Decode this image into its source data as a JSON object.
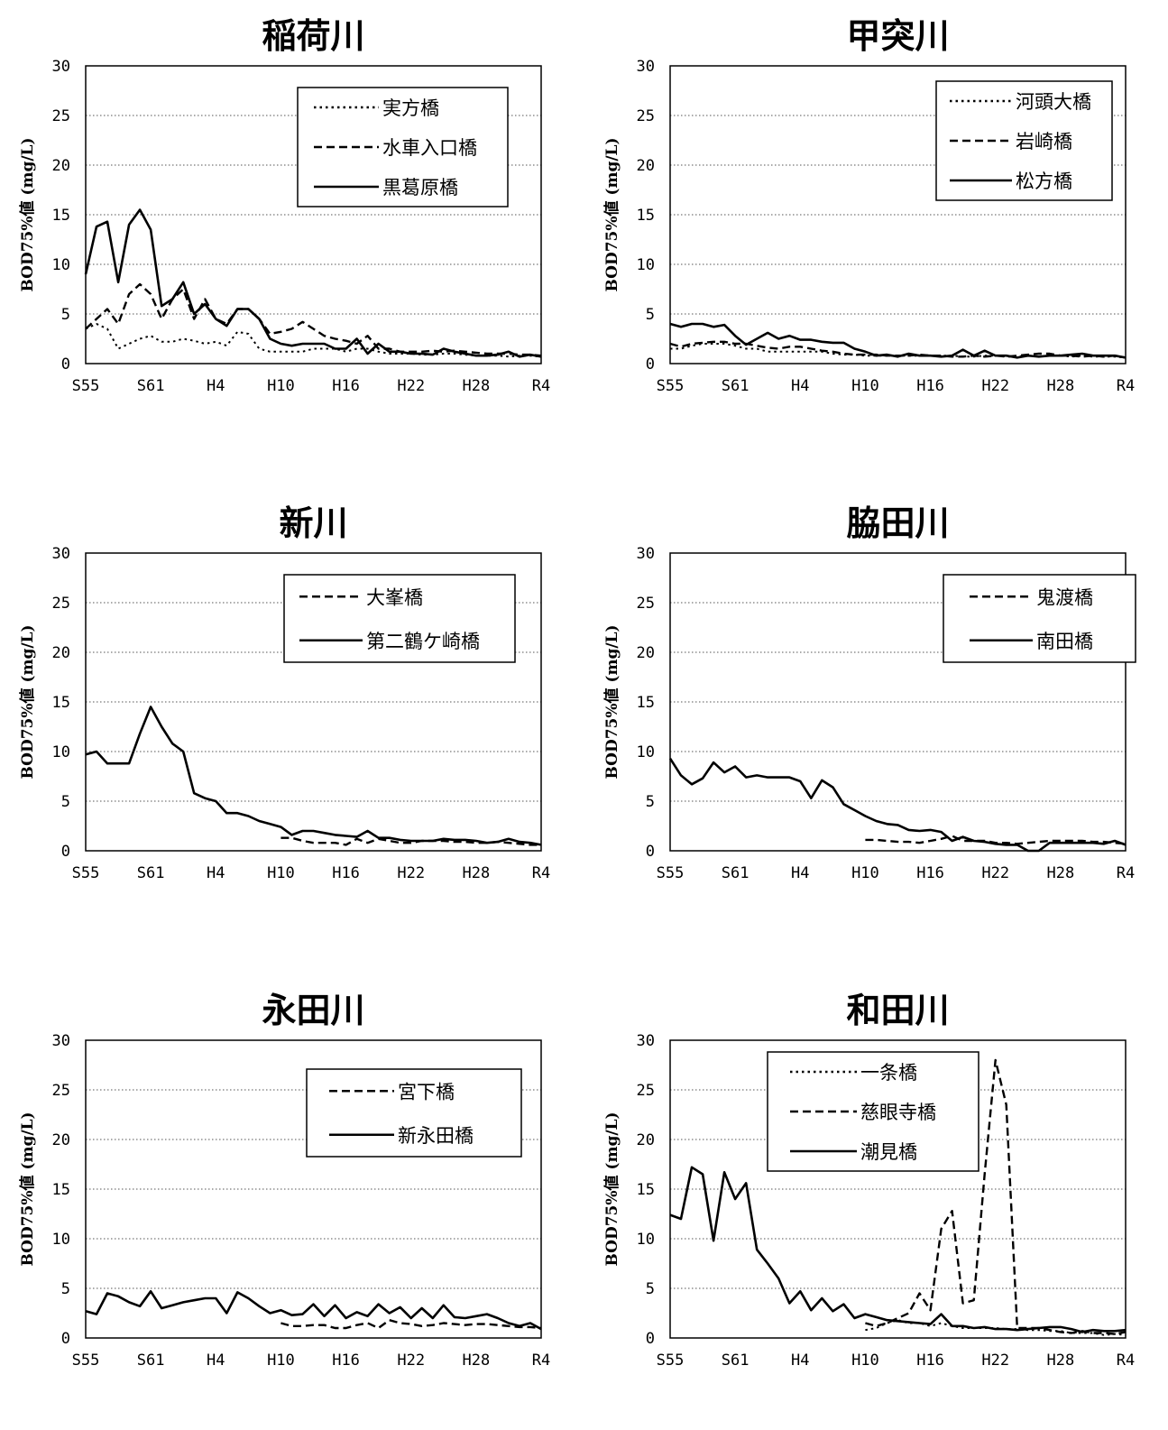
{
  "x_years": [
    1980,
    1981,
    1982,
    1983,
    1984,
    1985,
    1986,
    1987,
    1988,
    1989,
    1990,
    1991,
    1992,
    1993,
    1994,
    1995,
    1996,
    1997,
    1998,
    1999,
    2000,
    2001,
    2002,
    2003,
    2004,
    2005,
    2006,
    2007,
    2008,
    2009,
    2010,
    2011,
    2012,
    2013,
    2014,
    2015,
    2016,
    2017,
    2018,
    2019,
    2020,
    2021,
    2022
  ],
  "chart_data": [
    {
      "type": "line",
      "title": "稲荷川",
      "ylabel": "BOD75%値 (mg/L)",
      "ylim": [
        0,
        30
      ],
      "yticks": [
        "0",
        "5",
        "10",
        "15",
        "20",
        "25",
        "30"
      ],
      "xticks": [
        {
          "x": 1980,
          "label": "S55"
        },
        {
          "x": 1986,
          "label": "S61"
        },
        {
          "x": 1992,
          "label": "H4"
        },
        {
          "x": 1998,
          "label": "H10"
        },
        {
          "x": 2004,
          "label": "H16"
        },
        {
          "x": 2010,
          "label": "H22"
        },
        {
          "x": 2016,
          "label": "H28"
        },
        {
          "x": 2022,
          "label": "R4"
        }
      ],
      "grid": true,
      "legend_position": "top-right",
      "series": [
        {
          "name": "実方橋",
          "style": "dotted",
          "start": 1980,
          "values": [
            3.5,
            4.0,
            3.5,
            1.5,
            2.0,
            2.5,
            2.8,
            2.2,
            2.2,
            2.5,
            2.3,
            2.0,
            2.2,
            1.8,
            3.2,
            3.0,
            1.5,
            1.2,
            1.2,
            1.2,
            1.2,
            1.5,
            1.5,
            1.5,
            1.2,
            1.5,
            1.5,
            1.2,
            1.0,
            1.0,
            1.0,
            0.9,
            0.9,
            1.0,
            1.0,
            0.9,
            0.8,
            0.8,
            0.8,
            0.7,
            0.8,
            0.8,
            0.7
          ]
        },
        {
          "name": "水車入口橋",
          "style": "dashed",
          "start": 1980,
          "values": [
            3.5,
            4.5,
            5.5,
            4.0,
            7.0,
            8.0,
            7.0,
            4.5,
            6.5,
            7.5,
            4.5,
            6.5,
            4.5,
            4.0,
            5.5,
            5.5,
            4.5,
            3.0,
            3.2,
            3.5,
            4.2,
            3.5,
            2.8,
            2.5,
            2.3,
            2.0,
            2.8,
            1.5,
            1.5,
            1.2,
            1.2,
            1.2,
            1.3,
            1.2,
            1.3,
            1.2,
            1.1,
            1.0,
            1.0,
            1.0,
            0.9,
            0.9,
            0.8
          ]
        },
        {
          "name": "黒葛原橋",
          "style": "solid",
          "start": 1980,
          "values": [
            9.0,
            13.8,
            14.3,
            8.2,
            14.0,
            15.5,
            13.5,
            5.8,
            6.5,
            8.2,
            5.0,
            6.0,
            4.5,
            3.8,
            5.5,
            5.5,
            4.5,
            2.5,
            2.0,
            1.8,
            2.0,
            2.0,
            2.0,
            1.5,
            1.5,
            2.5,
            1.0,
            2.0,
            1.2,
            1.2,
            1.0,
            1.0,
            0.9,
            1.5,
            1.2,
            1.0,
            0.8,
            0.8,
            0.9,
            1.2,
            0.7,
            0.9,
            0.7
          ]
        }
      ]
    },
    {
      "type": "line",
      "title": "甲突川",
      "ylabel": "BOD75%値 (mg/L)",
      "ylim": [
        0,
        30
      ],
      "yticks": [
        "0",
        "5",
        "10",
        "15",
        "20",
        "25",
        "30"
      ],
      "xticks": [
        {
          "x": 1980,
          "label": "S55"
        },
        {
          "x": 1986,
          "label": "S61"
        },
        {
          "x": 1992,
          "label": "H4"
        },
        {
          "x": 1998,
          "label": "H10"
        },
        {
          "x": 2004,
          "label": "H16"
        },
        {
          "x": 2010,
          "label": "H22"
        },
        {
          "x": 2016,
          "label": "H28"
        },
        {
          "x": 2022,
          "label": "R4"
        }
      ],
      "grid": true,
      "legend_position": "top-right",
      "series": [
        {
          "name": "河頭大橋",
          "style": "dotted",
          "start": 1980,
          "values": [
            1.5,
            1.5,
            1.8,
            2.0,
            2.0,
            2.0,
            1.8,
            1.5,
            1.5,
            1.2,
            1.2,
            1.2,
            1.2,
            1.2,
            1.2,
            1.0,
            0.9,
            0.9,
            0.8,
            0.8,
            0.8,
            0.8,
            0.8,
            0.8,
            0.8,
            0.8,
            0.8,
            0.7,
            0.7,
            0.8,
            0.8,
            0.7,
            0.7,
            0.8,
            0.7,
            0.8,
            0.8,
            0.7,
            0.8,
            0.7,
            0.7,
            0.7,
            0.6
          ]
        },
        {
          "name": "岩崎橋",
          "style": "dashed",
          "start": 1980,
          "values": [
            2.0,
            1.7,
            2.0,
            2.1,
            2.2,
            2.2,
            2.0,
            2.0,
            1.8,
            1.6,
            1.5,
            1.7,
            1.7,
            1.5,
            1.3,
            1.2,
            1.0,
            0.9,
            0.9,
            0.9,
            0.8,
            0.8,
            0.8,
            0.9,
            0.8,
            0.8,
            0.7,
            0.7,
            0.8,
            0.7,
            0.8,
            0.7,
            0.8,
            0.9,
            1.0,
            1.0,
            0.8,
            0.8,
            0.7,
            0.8,
            0.7,
            0.8,
            0.6
          ]
        },
        {
          "name": "松方橋",
          "style": "solid",
          "start": 1980,
          "values": [
            4.0,
            3.7,
            4.0,
            4.0,
            3.7,
            3.9,
            2.8,
            1.9,
            2.5,
            3.1,
            2.5,
            2.8,
            2.4,
            2.4,
            2.2,
            2.1,
            2.1,
            1.5,
            1.2,
            0.8,
            0.9,
            0.7,
            1.0,
            0.8,
            0.8,
            0.7,
            0.8,
            1.4,
            0.8,
            1.3,
            0.8,
            0.8,
            0.6,
            0.8,
            0.7,
            0.8,
            0.8,
            0.9,
            1.0,
            0.8,
            0.8,
            0.8,
            0.6
          ]
        }
      ]
    },
    {
      "type": "line",
      "title": "新川",
      "ylabel": "BOD75%値 (mg/L)",
      "ylim": [
        0,
        30
      ],
      "yticks": [
        "0",
        "5",
        "10",
        "15",
        "20",
        "25",
        "30"
      ],
      "xticks": [
        {
          "x": 1980,
          "label": "S55"
        },
        {
          "x": 1986,
          "label": "S61"
        },
        {
          "x": 1992,
          "label": "H4"
        },
        {
          "x": 1998,
          "label": "H10"
        },
        {
          "x": 2004,
          "label": "H16"
        },
        {
          "x": 2010,
          "label": "H22"
        },
        {
          "x": 2016,
          "label": "H28"
        },
        {
          "x": 2022,
          "label": "R4"
        }
      ],
      "grid": true,
      "legend_position": "top-right",
      "series": [
        {
          "name": "大峯橋",
          "style": "dashed",
          "start": 1998,
          "values": [
            1.3,
            1.3,
            1.0,
            0.8,
            0.8,
            0.8,
            0.6,
            1.2,
            0.8,
            1.2,
            1.0,
            0.8,
            0.8,
            1.0,
            1.0,
            1.0,
            0.9,
            0.9,
            0.8,
            0.8,
            0.9,
            0.8,
            0.7,
            0.6,
            0.6
          ]
        },
        {
          "name": "第二鶴ケ崎橋",
          "style": "solid",
          "start": 1980,
          "values": [
            9.7,
            10.0,
            8.8,
            8.8,
            8.8,
            11.8,
            14.5,
            12.5,
            10.8,
            10.0,
            5.8,
            5.3,
            5.0,
            3.8,
            3.8,
            3.5,
            3.0,
            2.7,
            2.4,
            1.6,
            2.0,
            2.0,
            1.8,
            1.6,
            1.5,
            1.4,
            2.0,
            1.3,
            1.3,
            1.1,
            1.0,
            1.0,
            1.0,
            1.2,
            1.1,
            1.1,
            1.0,
            0.8,
            0.9,
            1.2,
            0.9,
            0.8,
            0.6
          ]
        }
      ]
    },
    {
      "type": "line",
      "title": "脇田川",
      "ylabel": "BOD75%値 (mg/L)",
      "ylim": [
        0,
        30
      ],
      "yticks": [
        "0",
        "5",
        "10",
        "15",
        "20",
        "25",
        "30"
      ],
      "xticks": [
        {
          "x": 1980,
          "label": "S55"
        },
        {
          "x": 1986,
          "label": "S61"
        },
        {
          "x": 1992,
          "label": "H4"
        },
        {
          "x": 1998,
          "label": "H10"
        },
        {
          "x": 2004,
          "label": "H16"
        },
        {
          "x": 2010,
          "label": "H22"
        },
        {
          "x": 2016,
          "label": "H28"
        },
        {
          "x": 2022,
          "label": "R4"
        }
      ],
      "grid": true,
      "legend_position": "top-right",
      "series": [
        {
          "name": "鬼渡橋",
          "style": "dashed",
          "start": 1998,
          "values": [
            1.1,
            1.1,
            1.0,
            0.9,
            0.9,
            0.8,
            1.0,
            1.2,
            1.5,
            1.0,
            1.0,
            1.0,
            0.8,
            0.8,
            0.7,
            0.8,
            0.9,
            1.0,
            1.0,
            1.0,
            1.0,
            0.9,
            0.9,
            0.8,
            0.7
          ]
        },
        {
          "name": "南田橋",
          "style": "solid",
          "start": 1980,
          "values": [
            9.3,
            7.6,
            6.7,
            7.3,
            8.9,
            7.9,
            8.5,
            7.4,
            7.6,
            7.4,
            7.4,
            7.4,
            7.0,
            5.3,
            7.1,
            6.4,
            4.7,
            4.1,
            3.5,
            3.0,
            2.7,
            2.6,
            2.1,
            2.0,
            2.1,
            1.9,
            1.0,
            1.4,
            1.0,
            0.9,
            0.7,
            0.6,
            0.6,
            0.0,
            0.0,
            0.8,
            0.8,
            0.8,
            0.8,
            0.8,
            0.7,
            1.0,
            0.6
          ]
        }
      ]
    },
    {
      "type": "line",
      "title": "永田川",
      "ylabel": "BOD75%値 (mg/L)",
      "ylim": [
        0,
        30
      ],
      "yticks": [
        "0",
        "5",
        "10",
        "15",
        "20",
        "25",
        "30"
      ],
      "xticks": [
        {
          "x": 1980,
          "label": "S55"
        },
        {
          "x": 1986,
          "label": "S61"
        },
        {
          "x": 1992,
          "label": "H4"
        },
        {
          "x": 1998,
          "label": "H10"
        },
        {
          "x": 2004,
          "label": "H16"
        },
        {
          "x": 2010,
          "label": "H22"
        },
        {
          "x": 2016,
          "label": "H28"
        },
        {
          "x": 2022,
          "label": "R4"
        }
      ],
      "grid": true,
      "legend_position": "top-right",
      "series": [
        {
          "name": "宮下橋",
          "style": "dashed",
          "start": 1998,
          "values": [
            1.5,
            1.2,
            1.2,
            1.3,
            1.3,
            1.0,
            1.0,
            1.3,
            1.5,
            1.0,
            1.8,
            1.5,
            1.4,
            1.2,
            1.3,
            1.5,
            1.4,
            1.3,
            1.4,
            1.4,
            1.3,
            1.2,
            1.1,
            1.1,
            1.0
          ]
        },
        {
          "name": "新永田橋",
          "style": "solid",
          "start": 1980,
          "values": [
            2.7,
            2.4,
            4.5,
            4.2,
            3.6,
            3.2,
            4.7,
            3.0,
            3.3,
            3.6,
            3.8,
            4.0,
            4.0,
            2.5,
            4.6,
            4.0,
            3.2,
            2.5,
            2.8,
            2.3,
            2.4,
            3.4,
            2.2,
            3.3,
            2.0,
            2.6,
            2.2,
            3.4,
            2.5,
            3.1,
            2.0,
            3.0,
            2.0,
            3.3,
            2.1,
            2.0,
            2.2,
            2.4,
            2.0,
            1.5,
            1.2,
            1.5,
            0.9
          ]
        }
      ]
    },
    {
      "type": "line",
      "title": "和田川",
      "ylabel": "BOD75%値 (mg/L)",
      "ylim": [
        0,
        30
      ],
      "yticks": [
        "0",
        "5",
        "10",
        "15",
        "20",
        "25",
        "30"
      ],
      "xticks": [
        {
          "x": 1980,
          "label": "S55"
        },
        {
          "x": 1986,
          "label": "S61"
        },
        {
          "x": 1992,
          "label": "H4"
        },
        {
          "x": 1998,
          "label": "H10"
        },
        {
          "x": 2004,
          "label": "H16"
        },
        {
          "x": 2010,
          "label": "H22"
        },
        {
          "x": 2016,
          "label": "H28"
        },
        {
          "x": 2022,
          "label": "R4"
        }
      ],
      "grid": true,
      "legend_position": "top-left",
      "series": [
        {
          "name": "一条橋",
          "style": "dotted",
          "start": 1998,
          "values": [
            0.8,
            1.0,
            1.5,
            1.8,
            1.5,
            1.5,
            1.2,
            1.5,
            1.2,
            1.0,
            1.0,
            1.0,
            1.0,
            0.9,
            0.9,
            0.8,
            0.8,
            0.7,
            0.7,
            0.5,
            0.5,
            0.5,
            0.3,
            0.4,
            0.3
          ]
        },
        {
          "name": "慈眼寺橋",
          "style": "dashed",
          "start": 1998,
          "values": [
            1.5,
            1.2,
            1.5,
            2.0,
            2.5,
            4.5,
            2.8,
            11.0,
            12.8,
            3.5,
            3.8,
            16.5,
            28.0,
            23.5,
            1.0,
            1.0,
            1.0,
            0.8,
            0.6,
            0.5,
            0.7,
            0.5,
            0.5,
            0.4,
            0.6
          ]
        },
        {
          "name": "潮見橋",
          "style": "solid",
          "start": 1980,
          "values": [
            12.4,
            12.0,
            17.2,
            16.5,
            9.8,
            16.7,
            14.0,
            15.6,
            8.9,
            7.5,
            6.0,
            3.5,
            4.7,
            2.8,
            4.0,
            2.7,
            3.4,
            2.0,
            2.4,
            2.1,
            1.8,
            1.7,
            1.6,
            1.5,
            1.4,
            2.4,
            1.2,
            1.2,
            1.0,
            1.1,
            0.9,
            0.9,
            0.8,
            0.9,
            1.0,
            1.1,
            1.1,
            0.9,
            0.6,
            0.8,
            0.7,
            0.7,
            0.8
          ]
        }
      ]
    }
  ]
}
